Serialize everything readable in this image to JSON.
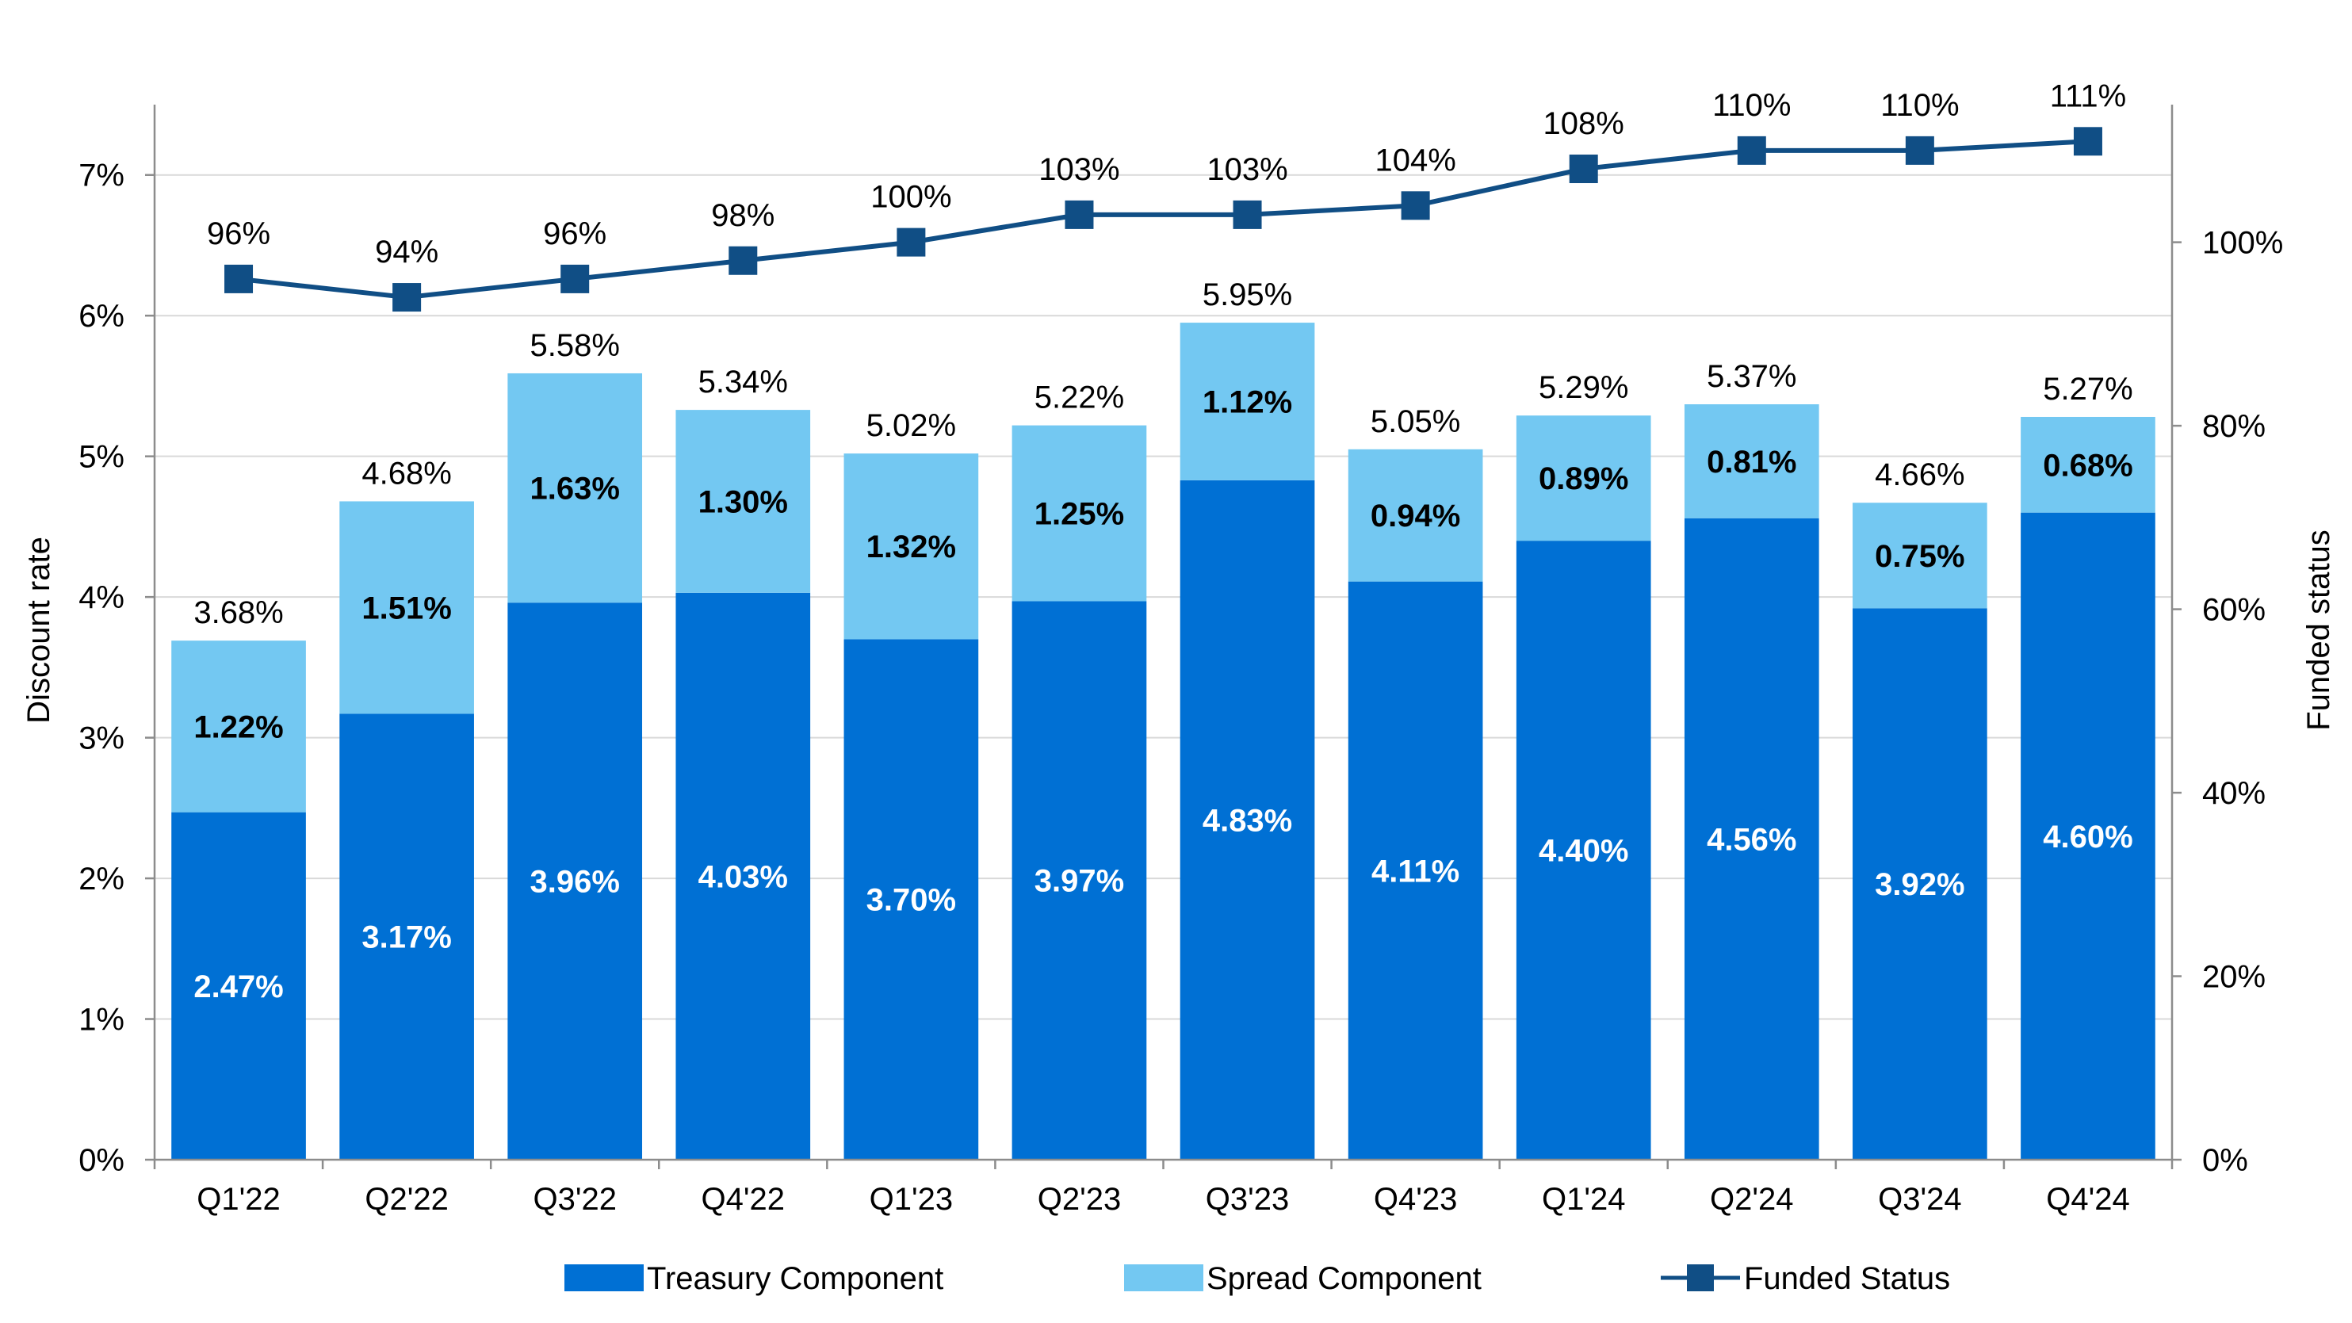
{
  "chart_data": {
    "type": "bar",
    "stacked": true,
    "categories": [
      "Q1'22",
      "Q2'22",
      "Q3'22",
      "Q4'22",
      "Q1'23",
      "Q2'23",
      "Q3'23",
      "Q4'23",
      "Q1'24",
      "Q2'24",
      "Q3'24",
      "Q4'24"
    ],
    "series": [
      {
        "name": "Treasury Component",
        "color": "#0070d4",
        "values": [
          2.47,
          3.17,
          3.96,
          4.03,
          3.7,
          3.97,
          4.83,
          4.11,
          4.4,
          4.56,
          3.92,
          4.6
        ],
        "labels": [
          "2.47%",
          "3.17%",
          "3.96%",
          "4.03%",
          "3.70%",
          "3.97%",
          "4.83%",
          "4.11%",
          "4.40%",
          "4.56%",
          "3.92%",
          "4.60%"
        ]
      },
      {
        "name": "Spread Component",
        "color": "#73c8f2",
        "values": [
          1.22,
          1.51,
          1.63,
          1.3,
          1.32,
          1.25,
          1.12,
          0.94,
          0.89,
          0.81,
          0.75,
          0.68
        ],
        "labels": [
          "1.22%",
          "1.51%",
          "1.63%",
          "1.30%",
          "1.32%",
          "1.25%",
          "1.12%",
          "0.94%",
          "0.89%",
          "0.81%",
          "0.75%",
          "0.68%"
        ]
      }
    ],
    "totals": [
      3.68,
      4.68,
      5.58,
      5.34,
      5.02,
      5.22,
      5.95,
      5.05,
      5.29,
      5.37,
      4.66,
      5.27
    ],
    "total_labels": [
      "3.68%",
      "4.68%",
      "5.58%",
      "5.34%",
      "5.02%",
      "5.22%",
      "5.95%",
      "5.05%",
      "5.29%",
      "5.37%",
      "4.66%",
      "5.27%"
    ],
    "line_series": {
      "name": "Funded Status",
      "color": "#104e85",
      "axis": "right",
      "values": [
        96,
        94,
        96,
        98,
        100,
        103,
        103,
        104,
        108,
        110,
        110,
        111
      ],
      "labels": [
        "96%",
        "94%",
        "96%",
        "98%",
        "100%",
        "103%",
        "103%",
        "104%",
        "108%",
        "110%",
        "110%",
        "111%"
      ]
    },
    "ylabel": "Discount rate",
    "y2label": "Funded status",
    "ylim": [
      0,
      7.5
    ],
    "y2lim": [
      0,
      115
    ],
    "yticks": [
      "0%",
      "1%",
      "2%",
      "3%",
      "4%",
      "5%",
      "6%",
      "7%"
    ],
    "y2ticks": [
      "0%",
      "20%",
      "40%",
      "60%",
      "80%",
      "100%"
    ],
    "grid": true,
    "legend_position": "bottom"
  }
}
